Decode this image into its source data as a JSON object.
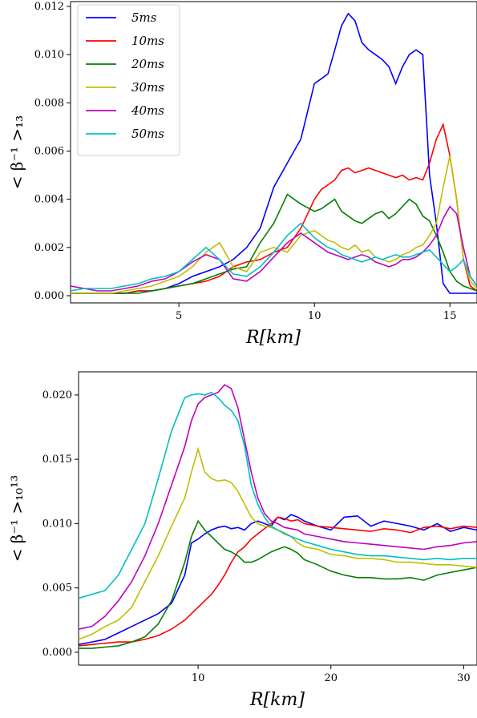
{
  "figure": {
    "colors": {
      "5ms": "#0000ff",
      "10ms": "#ff0000",
      "20ms": "#008000",
      "30ms": "#bfbf00",
      "40ms": "#bf00bf",
      "50ms": "#00bfbf"
    }
  },
  "chart_data": [
    {
      "type": "line",
      "title": "",
      "xlabel": "R[km]",
      "ylabel": "< β⁻¹ >₁₃",
      "xlim": [
        1,
        16
      ],
      "ylim": [
        -0.0003,
        0.0122
      ],
      "xticks": [
        5,
        10,
        15
      ],
      "xtick_labels": [
        "5",
        "10",
        "15"
      ],
      "yticks": [
        0,
        0.002,
        0.004,
        0.006,
        0.008,
        0.01,
        0.012
      ],
      "ytick_labels": [
        "0.000",
        "0.002",
        "0.004",
        "0.006",
        "0.008",
        "0.010",
        "0.012"
      ],
      "grid": false,
      "legend_position": "top-left",
      "x": [
        1,
        1.5,
        2,
        2.5,
        3,
        3.5,
        4,
        4.5,
        5,
        5.5,
        6,
        6.5,
        7,
        7.5,
        8,
        8.5,
        9,
        9.5,
        10,
        10.25,
        10.5,
        10.75,
        11,
        11.25,
        11.5,
        11.75,
        12,
        12.25,
        12.5,
        12.75,
        13,
        13.25,
        13.5,
        13.75,
        14,
        14.25,
        14.5,
        14.75,
        15,
        15.25,
        15.5,
        15.75,
        16
      ],
      "series": [
        {
          "name": "5ms",
          "color": "#0000ff",
          "values": [
            0.0001,
            0.0001,
            0.0001,
            0.0001,
            0.0001,
            0.0002,
            0.0002,
            0.0003,
            0.0005,
            0.0008,
            0.001,
            0.0012,
            0.0015,
            0.002,
            0.0028,
            0.0045,
            0.0055,
            0.0065,
            0.0088,
            0.009,
            0.0092,
            0.0102,
            0.0112,
            0.0117,
            0.0114,
            0.0105,
            0.0102,
            0.01,
            0.0098,
            0.0095,
            0.0088,
            0.0095,
            0.01,
            0.0102,
            0.01,
            0.005,
            0.003,
            0.0005,
            0.0001,
            0.0001,
            0.0001,
            0.0001,
            0.0001
          ]
        },
        {
          "name": "10ms",
          "color": "#ff0000",
          "values": [
            0.0001,
            0.0001,
            0.0001,
            0.0001,
            0.0001,
            0.0002,
            0.0002,
            0.0003,
            0.0004,
            0.0005,
            0.0006,
            0.0008,
            0.0012,
            0.0014,
            0.0015,
            0.0018,
            0.002,
            0.0028,
            0.004,
            0.0044,
            0.0046,
            0.0048,
            0.0052,
            0.0053,
            0.0051,
            0.0052,
            0.0053,
            0.0052,
            0.0051,
            0.005,
            0.0049,
            0.005,
            0.0048,
            0.0049,
            0.0048,
            0.0055,
            0.0065,
            0.0071,
            0.0058,
            0.004,
            0.0015,
            0.0004,
            0.0002
          ]
        },
        {
          "name": "20ms",
          "color": "#008000",
          "values": [
            0.0001,
            0.0001,
            0.0001,
            0.0001,
            0.0001,
            0.0001,
            0.0002,
            0.0003,
            0.0004,
            0.0005,
            0.0007,
            0.0009,
            0.0011,
            0.0012,
            0.0022,
            0.003,
            0.0042,
            0.0038,
            0.0035,
            0.0036,
            0.0038,
            0.004,
            0.0035,
            0.0033,
            0.0031,
            0.003,
            0.0032,
            0.0034,
            0.0035,
            0.0032,
            0.0034,
            0.0037,
            0.004,
            0.0038,
            0.0033,
            0.0031,
            0.0025,
            0.0018,
            0.001,
            0.0006,
            0.0004,
            0.0003,
            0.0002
          ]
        },
        {
          "name": "30ms",
          "color": "#bfbf00",
          "values": [
            0.0001,
            0.0001,
            0.0001,
            0.0001,
            0.0002,
            0.0003,
            0.0004,
            0.0006,
            0.0008,
            0.0012,
            0.0018,
            0.0022,
            0.0012,
            0.001,
            0.0018,
            0.002,
            0.0018,
            0.0025,
            0.0027,
            0.0025,
            0.0023,
            0.0022,
            0.002,
            0.0019,
            0.0021,
            0.0018,
            0.0019,
            0.0016,
            0.0015,
            0.0014,
            0.0015,
            0.0017,
            0.0018,
            0.002,
            0.0021,
            0.0025,
            0.003,
            0.0045,
            0.0058,
            0.004,
            0.0015,
            0.0006,
            0.0003
          ]
        },
        {
          "name": "40ms",
          "color": "#bf00bf",
          "values": [
            0.0004,
            0.0003,
            0.0002,
            0.0002,
            0.0003,
            0.0004,
            0.0006,
            0.0007,
            0.001,
            0.0014,
            0.0017,
            0.0015,
            0.0007,
            0.0006,
            0.001,
            0.0016,
            0.0022,
            0.0026,
            0.0022,
            0.002,
            0.0018,
            0.0017,
            0.0016,
            0.0015,
            0.0016,
            0.0017,
            0.0016,
            0.0014,
            0.0013,
            0.0012,
            0.0013,
            0.0015,
            0.0015,
            0.0016,
            0.0018,
            0.0021,
            0.0025,
            0.0032,
            0.0037,
            0.0034,
            0.002,
            0.0008,
            0.0004
          ]
        },
        {
          "name": "50ms",
          "color": "#00bfbf",
          "values": [
            0.0002,
            0.0003,
            0.0003,
            0.0003,
            0.0004,
            0.0005,
            0.0007,
            0.0008,
            0.001,
            0.0015,
            0.002,
            0.0015,
            0.0009,
            0.0008,
            0.0012,
            0.0018,
            0.0025,
            0.003,
            0.0024,
            0.0022,
            0.002,
            0.0019,
            0.0017,
            0.0016,
            0.0015,
            0.0014,
            0.0015,
            0.0016,
            0.0015,
            0.0016,
            0.0017,
            0.0016,
            0.0016,
            0.0017,
            0.0018,
            0.0019,
            0.0016,
            0.0013,
            0.001,
            0.0012,
            0.0015,
            0.0008,
            0.0004
          ]
        }
      ]
    },
    {
      "type": "line",
      "title": "",
      "xlabel": "R[km]",
      "ylabel": "< β⁻¹ >₁₀¹³",
      "xlim": [
        1,
        31
      ],
      "ylim": [
        -0.001,
        0.0218
      ],
      "xticks": [
        10,
        20,
        30
      ],
      "xtick_labels": [
        "10",
        "20",
        "30"
      ],
      "yticks": [
        0,
        0.005,
        0.01,
        0.015,
        0.02
      ],
      "ytick_labels": [
        "0.000",
        "0.005",
        "0.010",
        "0.015",
        "0.020"
      ],
      "grid": false,
      "x": [
        1,
        2,
        3,
        4,
        5,
        6,
        7,
        8,
        9,
        9.5,
        10,
        10.5,
        11,
        11.5,
        12,
        12.5,
        13,
        13.5,
        14,
        14.5,
        15,
        15.5,
        16,
        16.5,
        17,
        17.5,
        18,
        19,
        20,
        21,
        22,
        23,
        24,
        25,
        26,
        27,
        28,
        29,
        30,
        31
      ],
      "series": [
        {
          "name": "5ms",
          "color": "#0000ff",
          "values": [
            0.0006,
            0.0008,
            0.001,
            0.0015,
            0.002,
            0.0025,
            0.003,
            0.0038,
            0.006,
            0.0085,
            0.0088,
            0.0092,
            0.0095,
            0.0097,
            0.0098,
            0.0096,
            0.0097,
            0.0095,
            0.01,
            0.0102,
            0.01,
            0.0098,
            0.0105,
            0.0103,
            0.0107,
            0.0105,
            0.0102,
            0.0098,
            0.0095,
            0.0105,
            0.0106,
            0.0098,
            0.0102,
            0.01,
            0.0098,
            0.0095,
            0.01,
            0.0094,
            0.0097,
            0.0095
          ]
        },
        {
          "name": "10ms",
          "color": "#ff0000",
          "values": [
            0.0005,
            0.0006,
            0.0007,
            0.0008,
            0.0008,
            0.001,
            0.0013,
            0.0018,
            0.0025,
            0.003,
            0.0035,
            0.004,
            0.0045,
            0.0052,
            0.006,
            0.007,
            0.0078,
            0.0082,
            0.0088,
            0.0092,
            0.0096,
            0.01,
            0.0105,
            0.0104,
            0.0102,
            0.0103,
            0.01,
            0.0098,
            0.0097,
            0.0096,
            0.0095,
            0.0094,
            0.0096,
            0.0095,
            0.0093,
            0.0097,
            0.0098,
            0.0096,
            0.0098,
            0.0097
          ]
        },
        {
          "name": "20ms",
          "color": "#008000",
          "values": [
            0.0003,
            0.0003,
            0.0004,
            0.0005,
            0.0008,
            0.0012,
            0.0022,
            0.004,
            0.007,
            0.009,
            0.0102,
            0.0095,
            0.009,
            0.0085,
            0.008,
            0.0078,
            0.0075,
            0.007,
            0.007,
            0.0072,
            0.0075,
            0.0078,
            0.008,
            0.0082,
            0.008,
            0.0077,
            0.0072,
            0.0068,
            0.0063,
            0.006,
            0.0058,
            0.0058,
            0.0057,
            0.0057,
            0.0058,
            0.0056,
            0.006,
            0.0062,
            0.0064,
            0.0066
          ]
        },
        {
          "name": "30ms",
          "color": "#bfbf00",
          "values": [
            0.001,
            0.0014,
            0.002,
            0.0025,
            0.0035,
            0.0055,
            0.0075,
            0.0098,
            0.012,
            0.014,
            0.0158,
            0.014,
            0.0135,
            0.0133,
            0.0134,
            0.0132,
            0.0125,
            0.0115,
            0.0105,
            0.01,
            0.0098,
            0.0097,
            0.0095,
            0.0093,
            0.009,
            0.0085,
            0.0082,
            0.008,
            0.0076,
            0.0075,
            0.0073,
            0.0073,
            0.0072,
            0.007,
            0.007,
            0.0069,
            0.0068,
            0.0068,
            0.0067,
            0.0066
          ]
        },
        {
          "name": "40ms",
          "color": "#bf00bf",
          "values": [
            0.0018,
            0.002,
            0.0028,
            0.004,
            0.0055,
            0.0075,
            0.01,
            0.013,
            0.016,
            0.018,
            0.0193,
            0.0198,
            0.02,
            0.0202,
            0.0208,
            0.0205,
            0.019,
            0.0165,
            0.014,
            0.012,
            0.0108,
            0.0102,
            0.01,
            0.0097,
            0.0096,
            0.0095,
            0.0092,
            0.009,
            0.0088,
            0.0086,
            0.0085,
            0.0084,
            0.0083,
            0.0082,
            0.0081,
            0.008,
            0.0082,
            0.0083,
            0.0085,
            0.0086
          ]
        },
        {
          "name": "50ms",
          "color": "#00bfbf",
          "values": [
            0.0042,
            0.0045,
            0.0048,
            0.006,
            0.008,
            0.01,
            0.0135,
            0.0172,
            0.0198,
            0.02,
            0.0201,
            0.02,
            0.0202,
            0.0198,
            0.0192,
            0.0188,
            0.018,
            0.016,
            0.013,
            0.0115,
            0.0105,
            0.0098,
            0.0095,
            0.0092,
            0.009,
            0.0088,
            0.0086,
            0.0083,
            0.008,
            0.0078,
            0.0076,
            0.0075,
            0.0075,
            0.0074,
            0.0073,
            0.0072,
            0.0073,
            0.0072,
            0.0073,
            0.0073
          ]
        }
      ]
    }
  ],
  "legend": {
    "entries": [
      {
        "label": "5ms",
        "color": "#0000ff"
      },
      {
        "label": "10ms",
        "color": "#ff0000"
      },
      {
        "label": "20ms",
        "color": "#008000"
      },
      {
        "label": "30ms",
        "color": "#bfbf00"
      },
      {
        "label": "40ms",
        "color": "#bf00bf"
      },
      {
        "label": "50ms",
        "color": "#00bfbf"
      }
    ]
  }
}
